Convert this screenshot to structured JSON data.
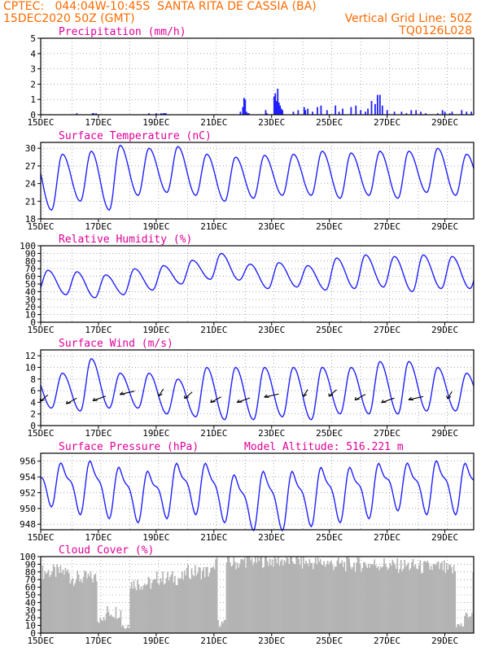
{
  "header": {
    "line1_left": "CPTEC:   044:04W-10:45S  SANTA RITA DE CASSIA (BA)",
    "line2_left": "15DEC2020 50Z (GMT)",
    "line2_right": "Vertical Grid Line: 50Z",
    "line3_right": "TQ0126L028"
  },
  "colors": {
    "header": "#ff6a00",
    "title": "#e0009a",
    "line": "#2020ff",
    "wind": "#000000",
    "cloud": "#b3b3b3"
  },
  "chart_data": [
    {
      "type": "bar",
      "title": "Precipitation (mm/h)",
      "ylim": [
        0,
        5
      ],
      "yticks": [
        0,
        1,
        2,
        3,
        4,
        5
      ],
      "xticks": [
        "15DEC",
        "17DEC",
        "19DEC",
        "21DEC",
        "23DEC",
        "25DEC",
        "27DEC",
        "29DEC"
      ],
      "xunit_note": "x in hours since 15DEC 00Z",
      "series": [
        {
          "x": [
            30,
            43,
            44,
            46,
            90,
            96,
            100,
            101,
            102,
            103,
            104,
            166,
            168,
            169,
            170,
            171,
            172,
            173,
            187,
            188,
            194,
            195,
            196,
            197,
            198,
            199,
            200,
            201,
            210,
            214,
            219,
            220,
            222,
            226,
            230,
            233,
            238,
            245,
            248,
            251,
            258,
            262,
            266,
            270,
            272,
            275,
            278,
            280,
            282,
            284,
            288,
            294,
            300,
            304,
            308,
            312,
            316,
            320,
            330,
            334,
            336,
            340,
            342,
            350,
            354,
            358
          ],
          "y": [
            0.1,
            0.1,
            0.1,
            0.1,
            0.1,
            0.1,
            0.1,
            0.05,
            0.1,
            0.1,
            0.1,
            0.2,
            0.5,
            1.1,
            1.0,
            0.2,
            0.1,
            0.1,
            0.3,
            0.1,
            1.2,
            1.4,
            0.9,
            1.7,
            0.8,
            0.6,
            0.4,
            0.3,
            0.2,
            0.3,
            0.5,
            0.3,
            0.4,
            0.2,
            0.5,
            0.6,
            0.3,
            0.6,
            0.2,
            0.4,
            0.5,
            0.6,
            0.3,
            0.2,
            0.4,
            0.9,
            0.7,
            1.3,
            1.3,
            0.6,
            0.3,
            0.2,
            0.2,
            0.1,
            0.3,
            0.3,
            0.2,
            0.1,
            0.1,
            0.3,
            0.2,
            0.1,
            0.2,
            0.3,
            0.2,
            0.2
          ]
        }
      ]
    },
    {
      "type": "line",
      "title": "Surface Temperature (nC)",
      "ylim": [
        18,
        31
      ],
      "yticks": [
        18,
        21,
        24,
        27,
        30
      ],
      "xticks": [
        "15DEC",
        "17DEC",
        "19DEC",
        "21DEC",
        "23DEC",
        "25DEC",
        "27DEC",
        "29DEC"
      ],
      "daily_max": [
        29.0,
        29.5,
        30.5,
        30.0,
        30.3,
        29.0,
        28.5,
        28.8,
        29.0,
        29.5,
        29.2,
        29.5,
        29.5,
        30.0,
        29.0
      ],
      "daily_min": [
        19.5,
        21.0,
        19.5,
        22.0,
        22.5,
        22.0,
        21.0,
        21.5,
        22.0,
        22.0,
        21.5,
        22.0,
        21.5,
        22.5,
        22.0
      ]
    },
    {
      "type": "line",
      "title": "Relative Humidity (%)",
      "ylim": [
        0,
        100
      ],
      "yticks": [
        0,
        10,
        20,
        30,
        40,
        50,
        60,
        70,
        80,
        90,
        100
      ],
      "xticks": [
        "15DEC",
        "17DEC",
        "19DEC",
        "21DEC",
        "23DEC",
        "25DEC",
        "27DEC",
        "29DEC"
      ],
      "daily_max": [
        68,
        66,
        62,
        70,
        74,
        81,
        90,
        76,
        78,
        74,
        84,
        88,
        86,
        88,
        86
      ],
      "daily_min": [
        38,
        36,
        32,
        36,
        42,
        50,
        56,
        55,
        44,
        46,
        42,
        44,
        46,
        40,
        44
      ]
    },
    {
      "type": "line",
      "title": "Surface Wind (m/s)",
      "ylim": [
        0,
        13
      ],
      "yticks": [
        0,
        2,
        4,
        6,
        8,
        10,
        12
      ],
      "xticks": [
        "15DEC",
        "17DEC",
        "19DEC",
        "21DEC",
        "23DEC",
        "25DEC",
        "27DEC",
        "29DEC"
      ],
      "daily_max": [
        9,
        11.5,
        9,
        9,
        8,
        10,
        10,
        10,
        10,
        10,
        10,
        11,
        11,
        10,
        9
      ],
      "daily_min": [
        3,
        2.5,
        3,
        3,
        2,
        1.5,
        1,
        1,
        1.5,
        1,
        2,
        2,
        2,
        2.5,
        2.5
      ],
      "arrows_note": "wind direction vectors plotted every 6 h"
    },
    {
      "type": "line",
      "title": "Surface Pressure (hPa)",
      "ylim": [
        947.3,
        957.0
      ],
      "yticks": [
        948,
        950,
        952,
        954,
        956
      ],
      "xticks": [
        "15DEC",
        "17DEC",
        "19DEC",
        "21DEC",
        "23DEC",
        "25DEC",
        "27DEC",
        "29DEC"
      ],
      "daily_max": [
        955.5,
        955.8,
        955.0,
        954.5,
        955.5,
        955.5,
        954.0,
        954.5,
        954.5,
        955.0,
        955.0,
        955.5,
        955.5,
        955.8,
        955.5
      ],
      "daily_min": [
        951.0,
        950.0,
        949.5,
        949.0,
        949.5,
        950.0,
        949.0,
        948.0,
        948.0,
        948.5,
        949.0,
        949.5,
        950.5,
        950.0,
        950.0
      ]
    },
    {
      "type": "bar",
      "title": "Cloud Cover (%)",
      "ylim": [
        0,
        100
      ],
      "yticks": [
        0,
        10,
        20,
        30,
        40,
        50,
        60,
        70,
        80,
        90,
        100
      ],
      "xticks": [
        "15DEC",
        "17DEC",
        "19DEC",
        "21DEC",
        "23DEC",
        "25DEC",
        "27DEC",
        "29DEC"
      ],
      "daily_mean": [
        80,
        72,
        28,
        65,
        72,
        80,
        92,
        95,
        95,
        92,
        90,
        90,
        88,
        86,
        82
      ],
      "low_dips": [
        [
          50,
          12
        ],
        [
          70,
          5
        ],
        [
          150,
          8
        ],
        [
          348,
          5
        ],
        [
          355,
          18
        ]
      ]
    }
  ],
  "annotation": "Model Altitude: 516.221 m"
}
